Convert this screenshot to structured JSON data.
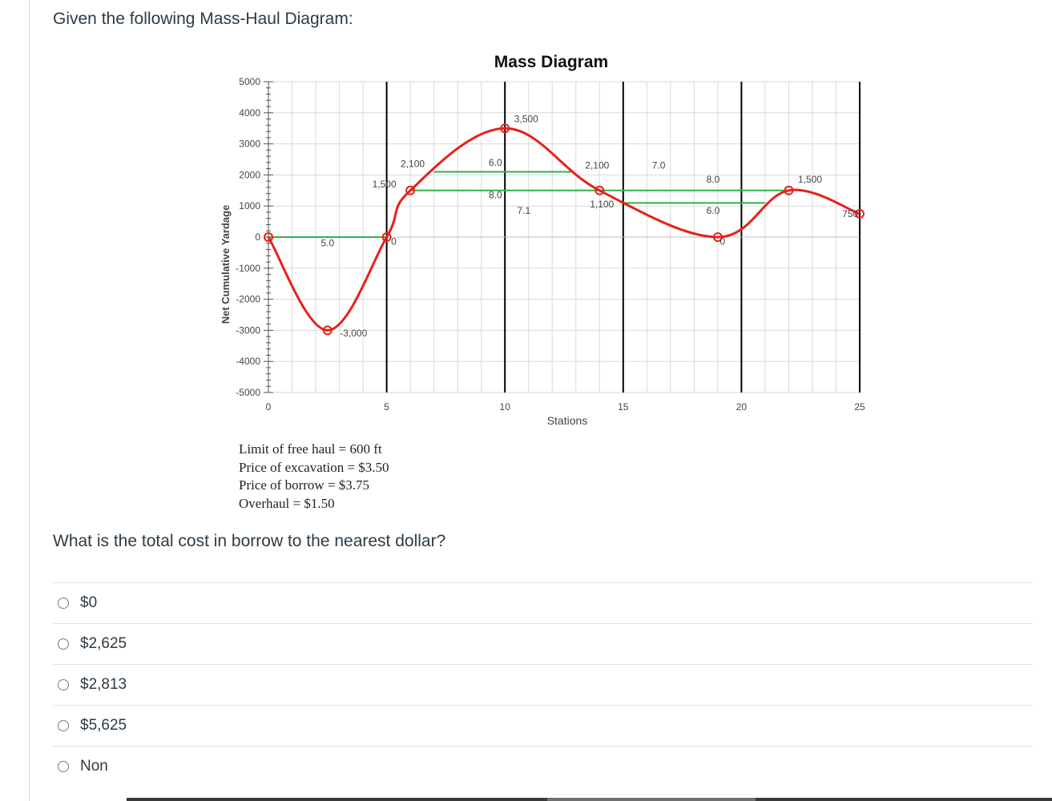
{
  "question": {
    "title": "Given the following Mass-Haul Diagram:",
    "prompt": "What is the total cost in borrow to the nearest dollar?"
  },
  "info": {
    "line1": "Limit of free haul = 600 ft",
    "line2": "Price of excavation = $3.50",
    "line3": "Price of borrow = $3.75",
    "line4": "Overhaul = $1.50"
  },
  "answers": [
    {
      "label": "$0"
    },
    {
      "label": "$2,625"
    },
    {
      "label": "$2,813"
    },
    {
      "label": "$5,625"
    },
    {
      "label": "Non"
    }
  ],
  "colors": {
    "curve": "#e8201a",
    "balance_line": "#2db34a",
    "grid": "#d9d9d9",
    "major_grid": "#000000"
  },
  "chart_data": {
    "type": "line",
    "title": "Mass Diagram",
    "xlabel": "Stations",
    "ylabel": "Net Cumulative Yardage",
    "xlim": [
      0,
      25
    ],
    "ylim": [
      -5000,
      5000
    ],
    "x_ticks": [
      "0",
      "5",
      "10",
      "15",
      "20",
      "25"
    ],
    "y_ticks": [
      "5000",
      "4000",
      "3000",
      "2000",
      "1000",
      "0",
      "-1000",
      "-2000",
      "-3000",
      "-4000",
      "-5000"
    ],
    "grid": true,
    "series": [
      {
        "points": [
          {
            "x": 0,
            "y": 0
          },
          {
            "x": 2.5,
            "y": -3000
          },
          {
            "x": 5,
            "y": 0
          },
          {
            "x": 6,
            "y": 1500
          },
          {
            "x": 10,
            "y": 3500
          },
          {
            "x": 14,
            "y": 1500
          },
          {
            "x": 19,
            "y": 0
          },
          {
            "x": 22,
            "y": 1500
          },
          {
            "x": 25,
            "y": 750
          }
        ]
      }
    ],
    "balance_lines": [
      {
        "x1": 0,
        "x2": 5,
        "y": 0
      },
      {
        "x1": 7,
        "x2": 12.8,
        "y": 2100
      },
      {
        "x1": 6,
        "x2": 14,
        "y": 1500
      },
      {
        "x1": 14,
        "x2": 22,
        "y": 1500
      },
      {
        "x1": 15,
        "x2": 21,
        "y": 1100
      }
    ],
    "annotations": [
      {
        "text": "5.0",
        "x": 2.5,
        "y": -300
      },
      {
        "text": "-3,000",
        "x": 3.6,
        "y": -3200
      },
      {
        "text": "0",
        "x": 5.3,
        "y": -250
      },
      {
        "text": "1,500",
        "x": 4.9,
        "y": 1600
      },
      {
        "text": "2,100",
        "x": 6.1,
        "y": 2250
      },
      {
        "text": "6.0",
        "x": 9.6,
        "y": 2300
      },
      {
        "text": "8.0",
        "x": 9.6,
        "y": 1250
      },
      {
        "text": "3,500",
        "x": 10.9,
        "y": 3700
      },
      {
        "text": "7.1",
        "x": 10.8,
        "y": 750
      },
      {
        "text": "2,100",
        "x": 13.9,
        "y": 2200
      },
      {
        "text": "1,100",
        "x": 14.1,
        "y": 950
      },
      {
        "text": "7.0",
        "x": 16.5,
        "y": 2200
      },
      {
        "text": "8.0",
        "x": 18.8,
        "y": 1750
      },
      {
        "text": "6.0",
        "x": 18.8,
        "y": 750
      },
      {
        "text": "0",
        "x": 19.2,
        "y": -250
      },
      {
        "text": "1,500",
        "x": 22.9,
        "y": 1750
      },
      {
        "text": "750",
        "x": 24.6,
        "y": 650
      }
    ]
  }
}
